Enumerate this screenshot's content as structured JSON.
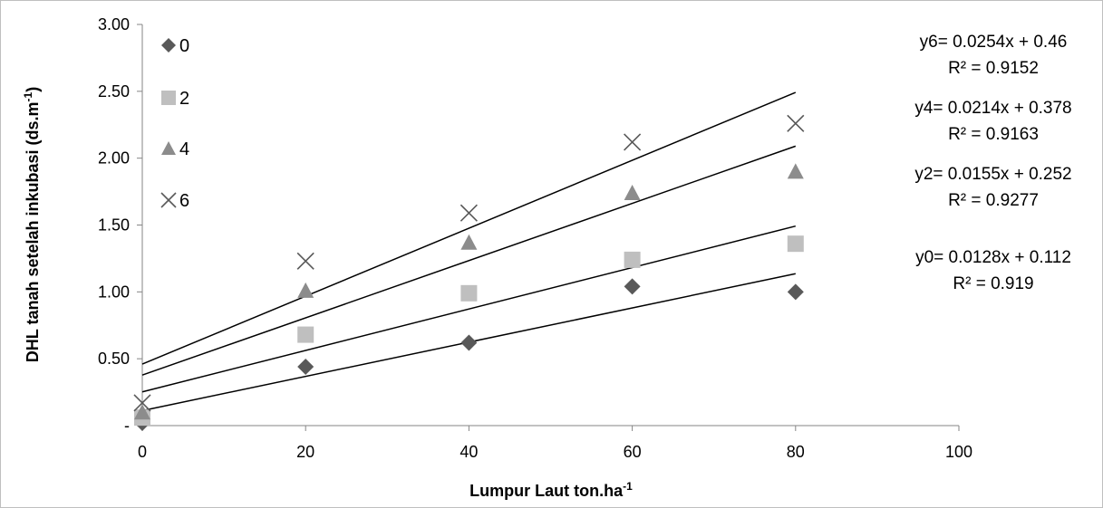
{
  "chart_data": {
    "type": "scatter",
    "xlabel": "Lumpur Laut ton.ha",
    "xlabel_sup": "-1",
    "ylabel": "DHL tanah setelah inkubasi (ds.m",
    "ylabel_sup": "-1",
    "ylabel_close": ")",
    "xlim": [
      0,
      100
    ],
    "ylim": [
      0,
      3.0
    ],
    "x_ticks": [
      0,
      20,
      40,
      60,
      80,
      100
    ],
    "x_tick_labels": [
      "0",
      "20",
      "40",
      "60",
      "80",
      "100"
    ],
    "y_ticks": [
      0,
      0.5,
      1.0,
      1.5,
      2.0,
      2.5,
      3.0
    ],
    "y_tick_labels": [
      "-",
      "0.50",
      "1.00",
      "1.50",
      "2.00",
      "2.50",
      "3.00"
    ],
    "grid": false,
    "legend_position": "top-left",
    "series": [
      {
        "name": "0",
        "marker": "diamond",
        "color": "#595959",
        "x": [
          0,
          20,
          40,
          60,
          80
        ],
        "y": [
          0.02,
          0.44,
          0.62,
          1.04,
          1.0
        ],
        "trend": {
          "slope": 0.0128,
          "intercept": 0.112,
          "equation": "y0= 0.0128x + 0.112",
          "r2": "R² = 0.919"
        }
      },
      {
        "name": "2",
        "marker": "square",
        "color": "#bfbfbf",
        "x": [
          0,
          20,
          40,
          60,
          80
        ],
        "y": [
          0.06,
          0.68,
          0.99,
          1.24,
          1.36
        ],
        "trend": {
          "slope": 0.0155,
          "intercept": 0.252,
          "equation": "y2= 0.0155x + 0.252",
          "r2": "R² = 0.9277"
        }
      },
      {
        "name": "4",
        "marker": "triangle",
        "color": "#8c8c8c",
        "x": [
          0,
          20,
          40,
          60,
          80
        ],
        "y": [
          0.1,
          1.01,
          1.37,
          1.74,
          1.9
        ],
        "trend": {
          "slope": 0.0214,
          "intercept": 0.378,
          "equation": "y4= 0.0214x + 0.378",
          "r2": "R² = 0.9163"
        }
      },
      {
        "name": "6",
        "marker": "x",
        "color": "#595959",
        "x": [
          0,
          20,
          40,
          60,
          80
        ],
        "y": [
          0.17,
          1.23,
          1.59,
          2.12,
          2.26
        ],
        "trend": {
          "slope": 0.0254,
          "intercept": 0.46,
          "equation": "y6= 0.0254x + 0.46",
          "r2": "R² = 0.9152"
        }
      }
    ],
    "equation_order": [
      3,
      2,
      1,
      0
    ]
  }
}
